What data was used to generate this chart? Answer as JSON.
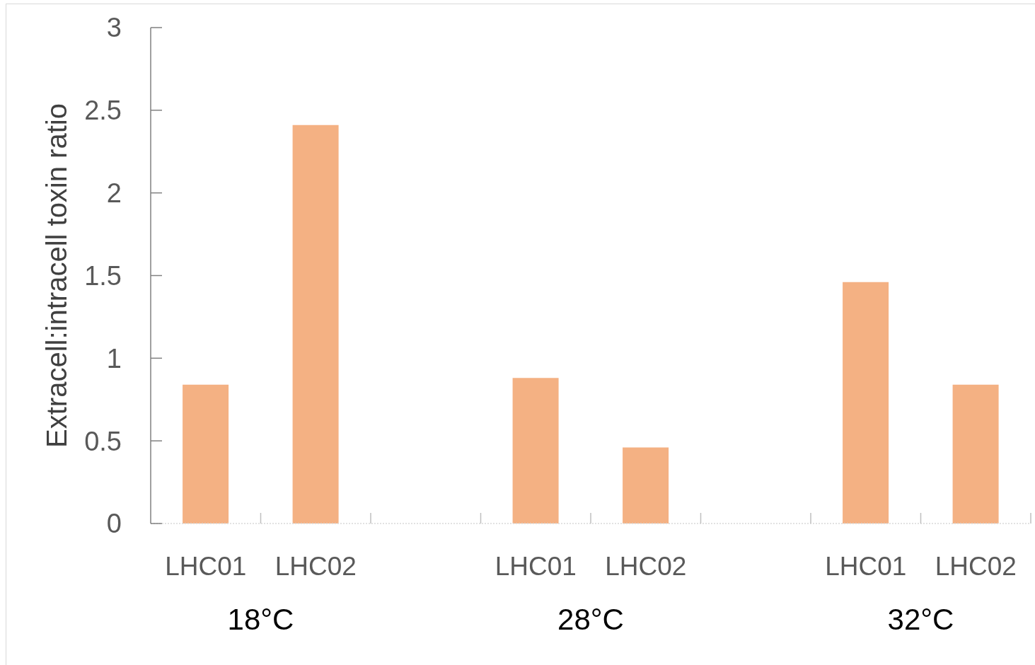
{
  "chart_data": {
    "type": "bar",
    "ylabel": "Extracell:intracell toxin ratio",
    "categories": [
      "LHC01",
      "LHC02",
      null,
      "LHC01",
      "LHC02",
      null,
      "LHC01",
      "LHC02"
    ],
    "values": [
      0.84,
      2.41,
      null,
      0.88,
      0.46,
      null,
      1.46,
      0.84
    ],
    "color": "#f4b183",
    "ylim": [
      0,
      3
    ],
    "yticks": [
      0,
      0.5,
      1,
      1.5,
      2,
      2.5,
      3
    ],
    "annotations": [
      "18°C",
      "28°C",
      "32°C"
    ]
  }
}
